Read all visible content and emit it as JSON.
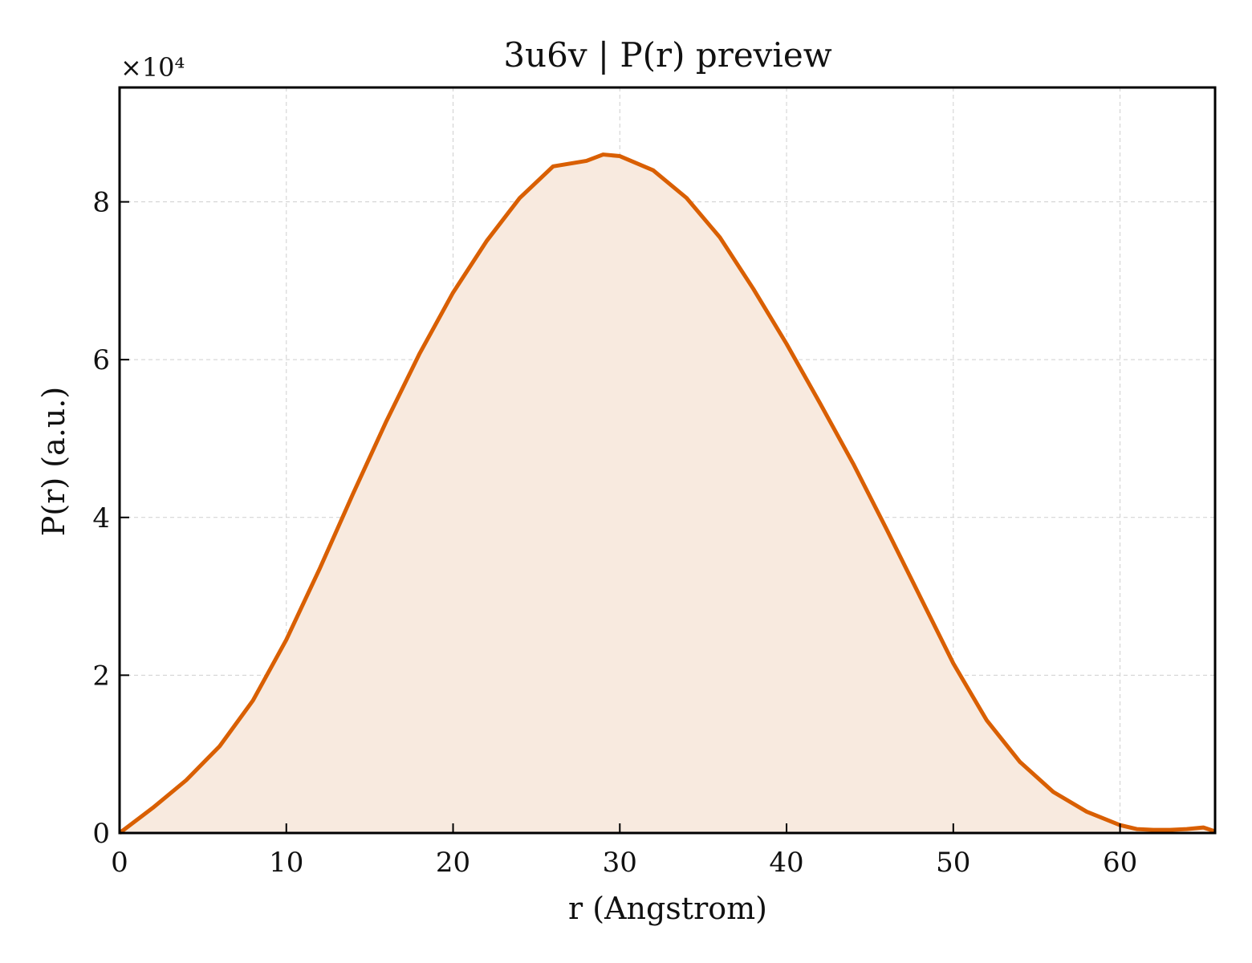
{
  "chart_data": {
    "type": "area",
    "title": "3u6v | P(r) preview",
    "xlabel": "r (Angstrom)",
    "ylabel": "P(r) (a.u.)",
    "y_multiplier_label": "×10⁴",
    "xlim": [
      0,
      65.7
    ],
    "ylim": [
      0,
      9.45
    ],
    "xticks": [
      0,
      10,
      20,
      30,
      40,
      50,
      60
    ],
    "yticks": [
      0,
      2,
      4,
      6,
      8
    ],
    "grid": true,
    "colors": {
      "line": "#d95f02",
      "fill": "#f8eadf",
      "grid": "#cfcfcf",
      "axes": "#000000"
    },
    "series": [
      {
        "x": [
          0,
          2,
          4,
          6,
          8,
          10,
          12,
          14,
          16,
          18,
          20,
          22,
          24,
          26,
          28,
          29,
          30,
          32,
          34,
          36,
          38,
          40,
          42,
          44,
          46,
          48,
          50,
          52,
          54,
          56,
          58,
          60,
          61,
          62,
          63,
          64,
          65,
          65.7
        ],
        "y": [
          0,
          0.32,
          0.67,
          1.1,
          1.68,
          2.45,
          3.35,
          4.3,
          5.22,
          6.08,
          6.85,
          7.5,
          8.05,
          8.45,
          8.52,
          8.6,
          8.58,
          8.4,
          8.05,
          7.55,
          6.9,
          6.2,
          5.45,
          4.68,
          3.85,
          3.0,
          2.15,
          1.43,
          0.9,
          0.52,
          0.27,
          0.1,
          0.05,
          0.04,
          0.04,
          0.05,
          0.07,
          0.02
        ]
      }
    ]
  }
}
